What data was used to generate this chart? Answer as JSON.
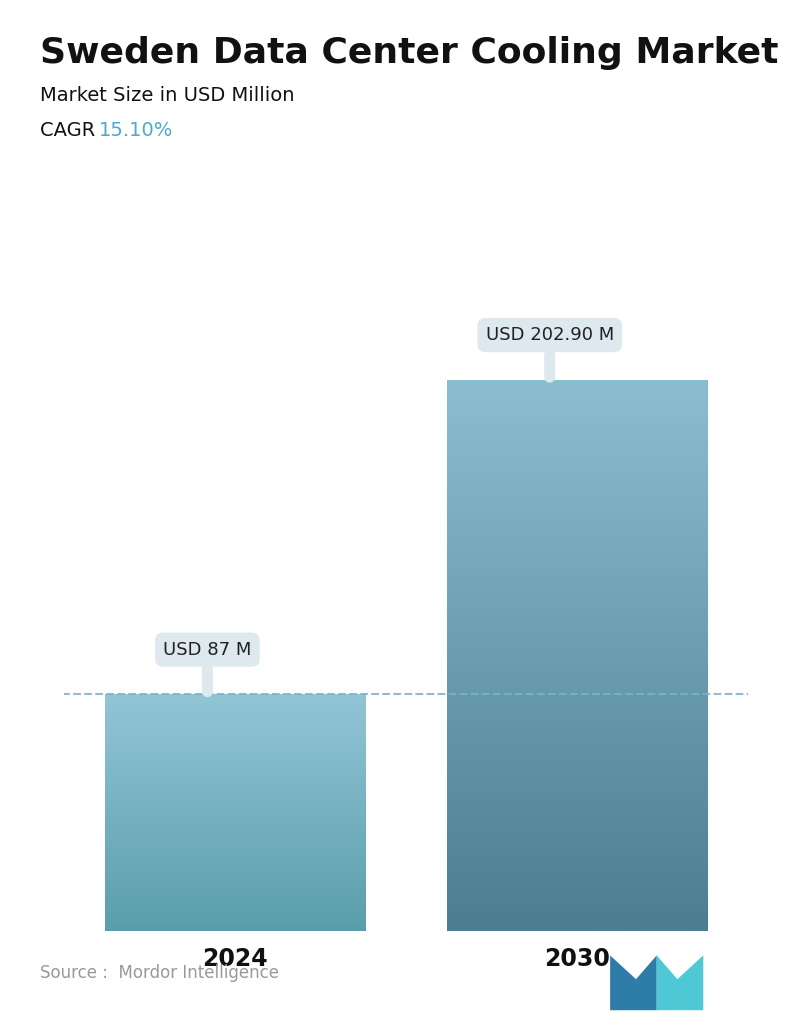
{
  "title": "Sweden Data Center Cooling Market",
  "subtitle": "Market Size in USD Million",
  "cagr_label": "CAGR  ",
  "cagr_value": "15.10%",
  "cagr_color": "#4DAACC",
  "categories": [
    "2024",
    "2030"
  ],
  "values": [
    87,
    202.9
  ],
  "bar_labels": [
    "USD 87 M",
    "USD 202.90 M"
  ],
  "color_top_2024": "#92c5d6",
  "color_bot_2024": "#5a9eac",
  "color_top_2030": "#8bbfcf",
  "color_bot_2030": "#4a7e90",
  "dashed_line_color": "#7ab2c8",
  "annotation_bg_color": "#dde8ef",
  "source_text": "Source :  Mordor Intelligence",
  "source_color": "#999999",
  "title_fontsize": 26,
  "subtitle_fontsize": 14,
  "cagr_fontsize": 14,
  "tick_fontsize": 17,
  "annotation_fontsize": 13,
  "source_fontsize": 12,
  "ylim": [
    0,
    240
  ],
  "fig_bg": "#ffffff",
  "bar_width": 0.38
}
